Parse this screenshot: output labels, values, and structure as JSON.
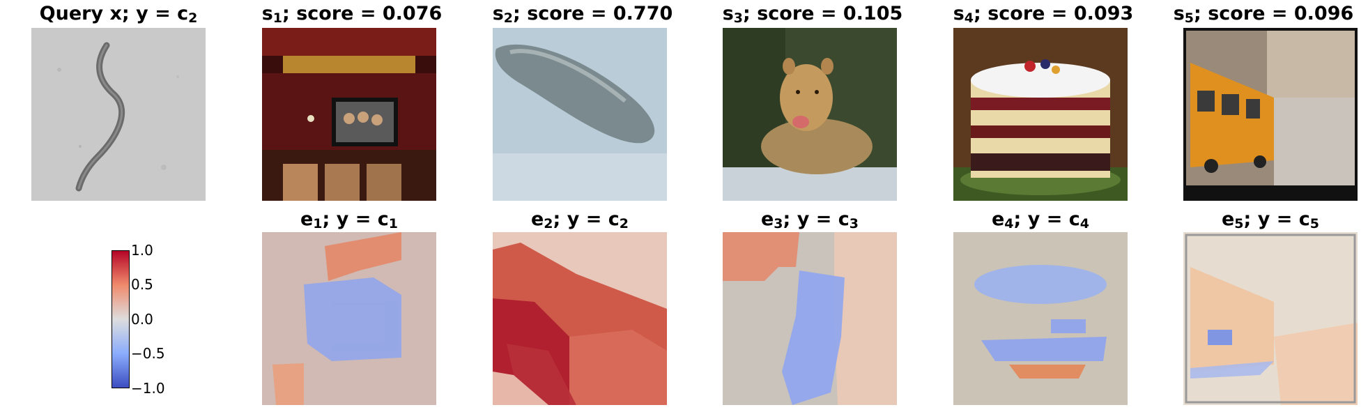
{
  "query": {
    "title_main": "Query x; y = c",
    "title_sub": "2"
  },
  "samples": [
    {
      "title_letter": "s",
      "title_sub": "1",
      "title_rest": "; score = 0.076",
      "depicts": "home-theater"
    },
    {
      "title_letter": "s",
      "title_sub": "2",
      "title_rest": "; score = 0.770",
      "depicts": "worm-closeup"
    },
    {
      "title_letter": "s",
      "title_sub": "3",
      "title_rest": "; score = 0.105",
      "depicts": "lioness"
    },
    {
      "title_letter": "s",
      "title_sub": "4",
      "title_rest": "; score = 0.093",
      "depicts": "trifle-cake"
    },
    {
      "title_letter": "s",
      "title_sub": "5",
      "title_rest": "; score = 0.096",
      "depicts": "school-bus"
    }
  ],
  "explanations": [
    {
      "title_letter": "e",
      "title_sub": "1",
      "title_mid": "; y = c",
      "title_sub2": "1"
    },
    {
      "title_letter": "e",
      "title_sub": "2",
      "title_mid": "; y = c",
      "title_sub2": "2"
    },
    {
      "title_letter": "e",
      "title_sub": "3",
      "title_mid": "; y = c",
      "title_sub2": "3"
    },
    {
      "title_letter": "e",
      "title_sub": "4",
      "title_mid": "; y = c",
      "title_sub2": "4"
    },
    {
      "title_letter": "e",
      "title_sub": "5",
      "title_mid": "; y = c",
      "title_sub2": "5"
    }
  ],
  "colorbar": {
    "ticks": [
      "1.0",
      "0.5",
      "0.0",
      "−0.5",
      "−1.0"
    ],
    "colormap": "coolwarm",
    "high_color": "#b40426",
    "mid_color": "#dddddd",
    "low_color": "#3b4cc0"
  }
}
